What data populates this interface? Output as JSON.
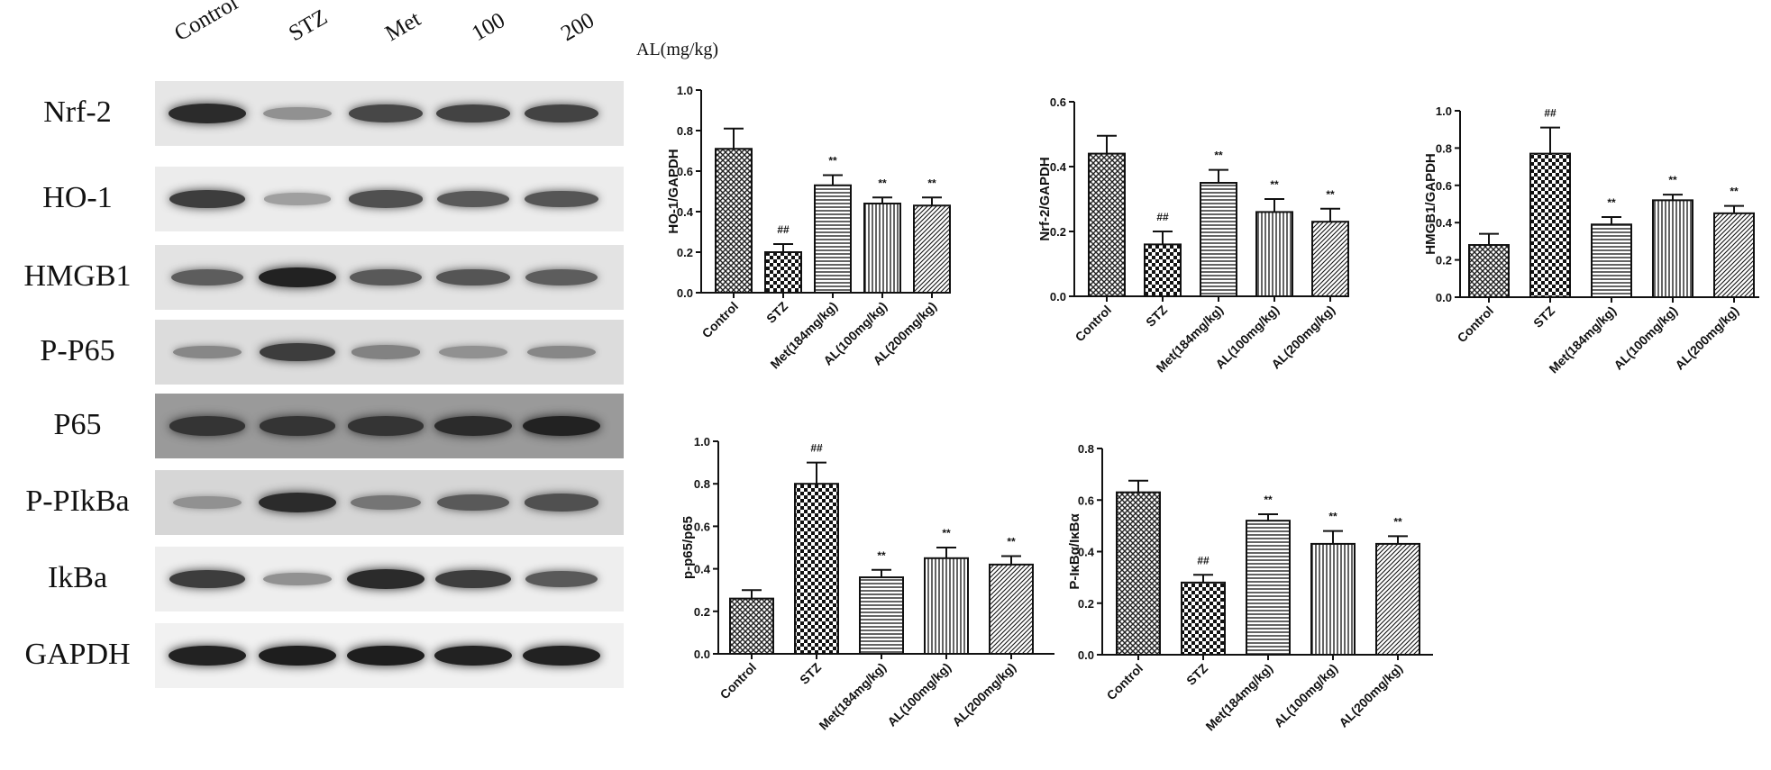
{
  "blot": {
    "lanes": [
      "Control",
      "STZ",
      "Met",
      "100",
      "200"
    ],
    "unit_label": "AL(mg/kg)",
    "rows": [
      {
        "label": "Nrf-2",
        "bg": "#e6e6e6",
        "intensity": [
          0.85,
          0.3,
          0.7,
          0.72,
          0.72
        ]
      },
      {
        "label": "HO-1",
        "bg": "#ececec",
        "intensity": [
          0.75,
          0.22,
          0.65,
          0.6,
          0.62
        ]
      },
      {
        "label": "HMGB1",
        "bg": "#e3e3e3",
        "intensity": [
          0.58,
          0.9,
          0.6,
          0.62,
          0.58
        ]
      },
      {
        "label": "P-P65",
        "bg": "#dcdcdc",
        "intensity": [
          0.35,
          0.75,
          0.38,
          0.3,
          0.35
        ]
      },
      {
        "label": "P65",
        "bg": "#9a9a9a",
        "intensity": [
          0.8,
          0.8,
          0.8,
          0.85,
          0.9
        ]
      },
      {
        "label": "P-PIkBa",
        "bg": "#d6d6d6",
        "intensity": [
          0.3,
          0.85,
          0.45,
          0.6,
          0.65
        ]
      },
      {
        "label": "IkBa",
        "bg": "#eeeeee",
        "intensity": [
          0.75,
          0.3,
          0.85,
          0.75,
          0.6
        ]
      },
      {
        "label": "GAPDH",
        "bg": "#f1f1f1",
        "intensity": [
          0.9,
          0.92,
          0.92,
          0.9,
          0.9
        ]
      }
    ]
  },
  "chart_data": [
    {
      "type": "bar",
      "categories": [
        "Control",
        "STZ",
        "Met(184mg/kg)",
        "AL(100mg/kg)",
        "AL(200mg/kg)"
      ],
      "values": [
        0.71,
        0.2,
        0.53,
        0.44,
        0.43
      ],
      "errors": [
        0.1,
        0.04,
        0.05,
        0.03,
        0.04
      ],
      "annotations": [
        "",
        "##",
        "**",
        "**",
        "**"
      ],
      "patterns": [
        "cross",
        "check",
        "hlines",
        "vlines",
        "diag"
      ],
      "ylabel": "HO-1/GAPDH",
      "ylim": [
        0,
        1.0
      ],
      "yticks": [
        "0.0",
        "0.2",
        "0.4",
        "0.6",
        "0.8",
        "1.0"
      ]
    },
    {
      "type": "bar",
      "categories": [
        "Control",
        "STZ",
        "Met(184mg/kg)",
        "AL(100mg/kg)",
        "AL(200mg/kg)"
      ],
      "values": [
        0.44,
        0.16,
        0.35,
        0.26,
        0.23
      ],
      "errors": [
        0.055,
        0.04,
        0.04,
        0.04,
        0.04
      ],
      "annotations": [
        "",
        "##",
        "**",
        "**",
        "**"
      ],
      "patterns": [
        "cross",
        "check",
        "hlines",
        "vlines",
        "diag"
      ],
      "ylabel": "Nrf-2/GAPDH",
      "ylim": [
        0,
        0.6
      ],
      "yticks": [
        "0.0",
        "0.2",
        "0.4",
        "0.6"
      ]
    },
    {
      "type": "bar",
      "categories": [
        "Control",
        "STZ",
        "Met(184mg/kg)",
        "AL(100mg/kg)",
        "AL(200mg/kg)"
      ],
      "values": [
        0.28,
        0.77,
        0.39,
        0.52,
        0.45
      ],
      "errors": [
        0.06,
        0.14,
        0.04,
        0.03,
        0.04
      ],
      "annotations": [
        "",
        "##",
        "**",
        "**",
        "**"
      ],
      "patterns": [
        "cross",
        "check",
        "hlines",
        "vlines",
        "diag"
      ],
      "ylabel": "HMGB1/GAPDH",
      "ylim": [
        0,
        1.0
      ],
      "yticks": [
        "0.0",
        "0.2",
        "0.4",
        "0.6",
        "0.8",
        "1.0"
      ]
    },
    {
      "type": "bar",
      "categories": [
        "Control",
        "STZ",
        "Met(184mg/kg)",
        "AL(100mg/kg)",
        "AL(200mg/kg)"
      ],
      "values": [
        0.26,
        0.8,
        0.36,
        0.45,
        0.42
      ],
      "errors": [
        0.04,
        0.1,
        0.035,
        0.05,
        0.04
      ],
      "annotations": [
        "",
        "##",
        "**",
        "**",
        "**"
      ],
      "patterns": [
        "cross",
        "check",
        "hlines",
        "vlines",
        "diag"
      ],
      "ylabel": "p-p65/p65",
      "ylim": [
        0,
        1.0
      ],
      "yticks": [
        "0.0",
        "0.2",
        "0.4",
        "0.6",
        "0.8",
        "1.0"
      ]
    },
    {
      "type": "bar",
      "categories": [
        "Control",
        "STZ",
        "Met(184mg/kg)",
        "AL(100mg/kg)",
        "AL(200mg/kg)"
      ],
      "values": [
        0.63,
        0.28,
        0.52,
        0.43,
        0.43
      ],
      "errors": [
        0.045,
        0.03,
        0.025,
        0.05,
        0.03
      ],
      "annotations": [
        "",
        "##",
        "**",
        "**",
        "**"
      ],
      "patterns": [
        "cross",
        "check",
        "hlines",
        "vlines",
        "diag"
      ],
      "ylabel": "P-IκBα/IκBα",
      "ylim": [
        0,
        0.8
      ],
      "yticks": [
        "0.0",
        "0.2",
        "0.4",
        "0.6",
        "0.8"
      ]
    }
  ]
}
